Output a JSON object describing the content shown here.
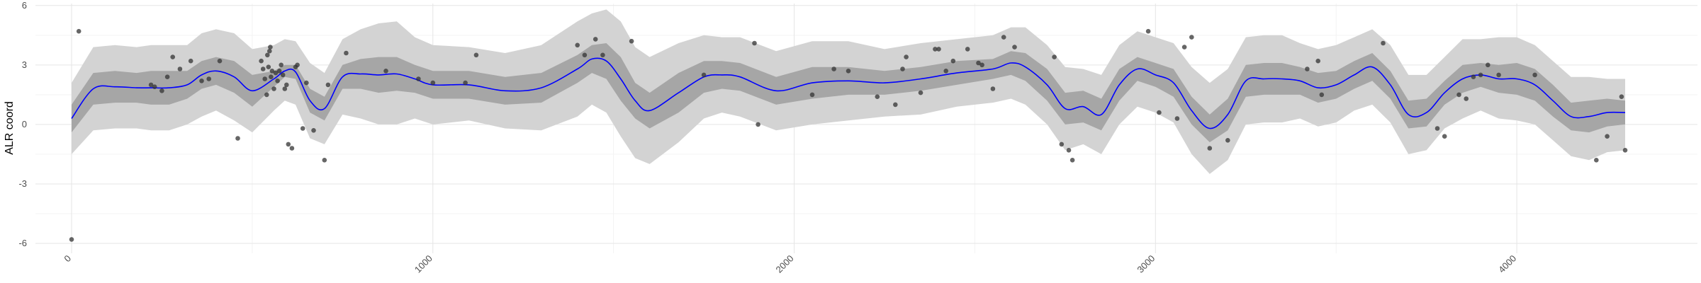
{
  "chart_data": {
    "type": "line",
    "title": "",
    "xlabel": "",
    "ylabel": "ALR coord",
    "xlim": [
      -100,
      4500
    ],
    "ylim": [
      -6.5,
      6.1
    ],
    "grid": true,
    "legend": "none",
    "x_ticks": [
      0,
      1000,
      2000,
      3000,
      4000
    ],
    "x_tick_labels": [
      "0",
      "1000",
      "2000",
      "3000",
      "4000"
    ],
    "y_ticks": [
      -6,
      -3,
      0,
      3,
      6
    ],
    "y_tick_labels": [
      "-6",
      "-3",
      "0",
      "3",
      "6"
    ],
    "colors": {
      "mean_line": "#0000ff",
      "inner_band": "#a6a6a6",
      "outer_band": "#d3d3d3",
      "points": "#333333",
      "grid_major": "#e5e5e5",
      "grid_minor": "#f3f3f3"
    },
    "series": [
      {
        "role": "mean",
        "x": [
          0,
          60,
          120,
          180,
          220,
          270,
          320,
          360,
          400,
          450,
          500,
          560,
          590,
          620,
          660,
          700,
          750,
          800,
          850,
          900,
          950,
          1000,
          1100,
          1200,
          1300,
          1400,
          1440,
          1480,
          1520,
          1560,
          1600,
          1680,
          1750,
          1800,
          1850,
          1950,
          2050,
          2150,
          2250,
          2350,
          2450,
          2550,
          2600,
          2640,
          2700,
          2750,
          2800,
          2850,
          2900,
          2950,
          3000,
          3050,
          3100,
          3150,
          3200,
          3250,
          3300,
          3350,
          3400,
          3450,
          3500,
          3550,
          3600,
          3650,
          3700,
          3750,
          3800,
          3850,
          3900,
          3950,
          4000,
          4050,
          4100,
          4150,
          4200,
          4250,
          4300
        ],
        "y": [
          0.3,
          1.8,
          1.9,
          1.85,
          1.85,
          1.85,
          2.0,
          2.5,
          2.7,
          2.4,
          1.7,
          2.3,
          2.7,
          2.65,
          1.2,
          0.8,
          2.4,
          2.55,
          2.5,
          2.55,
          2.3,
          2.0,
          2.0,
          1.7,
          1.85,
          2.8,
          3.3,
          3.2,
          2.3,
          1.2,
          0.7,
          1.6,
          2.4,
          2.5,
          2.4,
          1.7,
          2.1,
          2.2,
          2.1,
          2.3,
          2.6,
          2.8,
          3.1,
          2.9,
          2.0,
          0.8,
          0.9,
          0.5,
          2.0,
          2.8,
          2.5,
          2.1,
          0.7,
          -0.2,
          0.5,
          2.2,
          2.3,
          2.3,
          2.2,
          1.85,
          2.0,
          2.5,
          2.9,
          2.0,
          0.5,
          0.6,
          1.6,
          2.3,
          2.5,
          2.3,
          2.3,
          2.0,
          1.2,
          0.4,
          0.4,
          0.6,
          0.6
        ]
      },
      {
        "role": "inner_band",
        "x": [
          0,
          60,
          120,
          180,
          220,
          270,
          320,
          360,
          400,
          450,
          500,
          560,
          590,
          620,
          660,
          700,
          750,
          800,
          850,
          900,
          950,
          1000,
          1100,
          1200,
          1300,
          1400,
          1440,
          1480,
          1520,
          1560,
          1600,
          1680,
          1750,
          1800,
          1850,
          1950,
          2050,
          2150,
          2250,
          2350,
          2450,
          2550,
          2600,
          2640,
          2700,
          2750,
          2800,
          2850,
          2900,
          2950,
          3000,
          3050,
          3100,
          3150,
          3200,
          3250,
          3300,
          3350,
          3400,
          3450,
          3500,
          3550,
          3600,
          3650,
          3700,
          3750,
          3800,
          3850,
          3900,
          3950,
          4000,
          4050,
          4100,
          4150,
          4200,
          4250,
          4300
        ],
        "lower": [
          -0.4,
          1.0,
          1.1,
          1.1,
          1.0,
          1.0,
          1.3,
          1.8,
          2.0,
          1.6,
          0.9,
          1.9,
          2.4,
          2.3,
          0.6,
          0.2,
          1.8,
          1.8,
          1.6,
          1.7,
          1.6,
          1.3,
          1.3,
          1.0,
          1.1,
          2.1,
          2.6,
          2.3,
          1.2,
          0.3,
          -0.2,
          0.6,
          1.6,
          1.8,
          1.7,
          1.0,
          1.3,
          1.5,
          1.5,
          1.7,
          2.0,
          2.3,
          2.5,
          2.2,
          1.2,
          0.0,
          0.1,
          -0.3,
          1.2,
          2.2,
          1.9,
          1.4,
          0.0,
          -0.9,
          -0.3,
          1.4,
          1.5,
          1.5,
          1.5,
          1.1,
          1.3,
          1.8,
          2.2,
          1.3,
          -0.2,
          -0.1,
          1.0,
          1.6,
          1.9,
          1.6,
          1.5,
          1.2,
          0.4,
          -0.3,
          -0.4,
          -0.1,
          0.0
        ],
        "upper": [
          1.0,
          2.6,
          2.7,
          2.6,
          2.7,
          2.7,
          2.7,
          3.2,
          3.4,
          3.2,
          2.5,
          2.7,
          3.0,
          3.0,
          1.8,
          1.4,
          3.0,
          3.3,
          3.4,
          3.4,
          3.0,
          2.7,
          2.7,
          2.4,
          2.6,
          3.5,
          4.0,
          4.1,
          3.4,
          2.1,
          1.6,
          2.6,
          3.2,
          3.2,
          3.1,
          2.4,
          2.9,
          2.9,
          2.7,
          2.9,
          3.2,
          3.3,
          3.7,
          3.6,
          2.8,
          1.6,
          1.7,
          1.3,
          2.8,
          3.4,
          3.1,
          2.8,
          1.4,
          0.5,
          1.3,
          3.0,
          3.1,
          3.1,
          2.9,
          2.6,
          2.7,
          3.2,
          3.6,
          2.7,
          1.2,
          1.3,
          2.2,
          3.0,
          3.1,
          3.0,
          3.1,
          2.8,
          2.0,
          1.1,
          1.2,
          1.3,
          1.2
        ]
      },
      {
        "role": "outer_band",
        "x": [
          0,
          60,
          120,
          180,
          220,
          270,
          320,
          360,
          400,
          450,
          500,
          560,
          590,
          620,
          660,
          700,
          750,
          800,
          850,
          900,
          950,
          1000,
          1100,
          1200,
          1300,
          1400,
          1440,
          1480,
          1520,
          1560,
          1600,
          1680,
          1750,
          1800,
          1850,
          1950,
          2050,
          2150,
          2250,
          2350,
          2450,
          2550,
          2600,
          2640,
          2700,
          2750,
          2800,
          2850,
          2900,
          2950,
          3000,
          3050,
          3100,
          3150,
          3200,
          3250,
          3300,
          3350,
          3400,
          3450,
          3500,
          3550,
          3600,
          3650,
          3700,
          3750,
          3800,
          3850,
          3900,
          3950,
          4000,
          4050,
          4100,
          4150,
          4200,
          4250,
          4300
        ],
        "lower": [
          -1.5,
          -0.3,
          -0.2,
          -0.2,
          -0.3,
          -0.3,
          0.0,
          0.4,
          0.7,
          0.2,
          -0.4,
          0.7,
          1.2,
          1.0,
          -0.7,
          -1.0,
          0.5,
          0.3,
          0.0,
          0.0,
          0.3,
          0.0,
          0.2,
          -0.2,
          -0.3,
          0.4,
          1.0,
          0.6,
          -0.6,
          -1.7,
          -2.0,
          -0.9,
          0.3,
          0.6,
          0.4,
          -0.3,
          0.0,
          0.2,
          0.4,
          0.5,
          0.9,
          1.1,
          1.3,
          1.0,
          0.0,
          -1.3,
          -1.0,
          -1.5,
          0.0,
          0.9,
          0.6,
          0.1,
          -1.5,
          -2.5,
          -1.8,
          0.0,
          0.1,
          0.1,
          0.3,
          -0.1,
          0.1,
          0.7,
          1.0,
          0.1,
          -1.5,
          -1.3,
          -0.2,
          0.3,
          0.7,
          0.3,
          0.2,
          0.0,
          -0.8,
          -1.6,
          -1.8,
          -1.4,
          -1.3
        ],
        "upper": [
          2.1,
          3.9,
          4.0,
          3.9,
          4.0,
          4.0,
          4.0,
          4.6,
          4.8,
          4.6,
          3.8,
          4.0,
          4.3,
          4.2,
          3.1,
          2.6,
          4.3,
          4.8,
          5.1,
          5.2,
          4.4,
          4.0,
          3.9,
          3.6,
          4.0,
          5.2,
          5.6,
          5.8,
          5.2,
          3.9,
          3.4,
          4.1,
          4.5,
          4.4,
          4.4,
          3.7,
          4.2,
          4.2,
          3.8,
          4.1,
          4.3,
          4.5,
          4.9,
          4.9,
          4.0,
          2.9,
          2.8,
          2.5,
          4.0,
          4.7,
          4.4,
          4.1,
          2.9,
          2.1,
          2.8,
          4.4,
          4.5,
          4.5,
          4.1,
          3.8,
          4.0,
          4.4,
          4.8,
          4.0,
          2.5,
          2.5,
          3.4,
          4.3,
          4.3,
          4.4,
          4.4,
          4.0,
          3.2,
          2.4,
          2.4,
          2.3,
          2.3
        ]
      },
      {
        "role": "points",
        "x": [
          0,
          20,
          220,
          230,
          250,
          265,
          280,
          300,
          330,
          360,
          380,
          410,
          460,
          525,
          530,
          535,
          540,
          542,
          545,
          548,
          550,
          552,
          555,
          560,
          565,
          570,
          575,
          580,
          585,
          590,
          595,
          600,
          610,
          620,
          625,
          640,
          650,
          670,
          700,
          710,
          760,
          870,
          960,
          1000,
          1090,
          1120,
          1400,
          1420,
          1450,
          1470,
          1550,
          1750,
          1890,
          1900,
          2050,
          2110,
          2150,
          2230,
          2280,
          2300,
          2310,
          2350,
          2390,
          2400,
          2420,
          2440,
          2480,
          2510,
          2520,
          2550,
          2580,
          2610,
          2720,
          2740,
          2760,
          2770,
          2980,
          3010,
          3060,
          3080,
          3100,
          3150,
          3200,
          3420,
          3450,
          3460,
          3630,
          3780,
          3800,
          3840,
          3860,
          3880,
          3900,
          3920,
          3950,
          4050,
          4220,
          4250,
          4290,
          4300
        ],
        "y": [
          -5.8,
          4.7,
          2.0,
          1.9,
          1.7,
          2.4,
          3.4,
          2.8,
          3.2,
          2.2,
          2.3,
          3.2,
          -0.7,
          3.2,
          2.8,
          2.3,
          1.5,
          3.5,
          2.9,
          3.7,
          3.9,
          2.4,
          2.7,
          1.8,
          2.6,
          2.2,
          2.7,
          3.0,
          2.5,
          1.8,
          2.0,
          -1.0,
          -1.2,
          2.9,
          3.0,
          -0.2,
          2.1,
          -0.3,
          -1.8,
          2.0,
          3.6,
          2.7,
          2.3,
          2.1,
          2.1,
          3.5,
          4.0,
          3.5,
          4.3,
          3.5,
          4.2,
          2.5,
          4.1,
          0.0,
          1.5,
          2.8,
          2.7,
          1.4,
          1.0,
          2.8,
          3.4,
          1.6,
          3.8,
          3.8,
          2.7,
          3.2,
          3.8,
          3.1,
          3.0,
          1.8,
          4.4,
          3.9,
          3.4,
          -1.0,
          -1.3,
          -1.8,
          4.7,
          0.6,
          0.3,
          3.9,
          4.4,
          -1.2,
          -0.8,
          2.8,
          3.2,
          1.5,
          4.1,
          -0.2,
          -0.6,
          1.5,
          1.3,
          2.4,
          2.5,
          3.0,
          2.5,
          2.5,
          -1.8,
          -0.6,
          1.4,
          -1.3
        ]
      }
    ]
  }
}
